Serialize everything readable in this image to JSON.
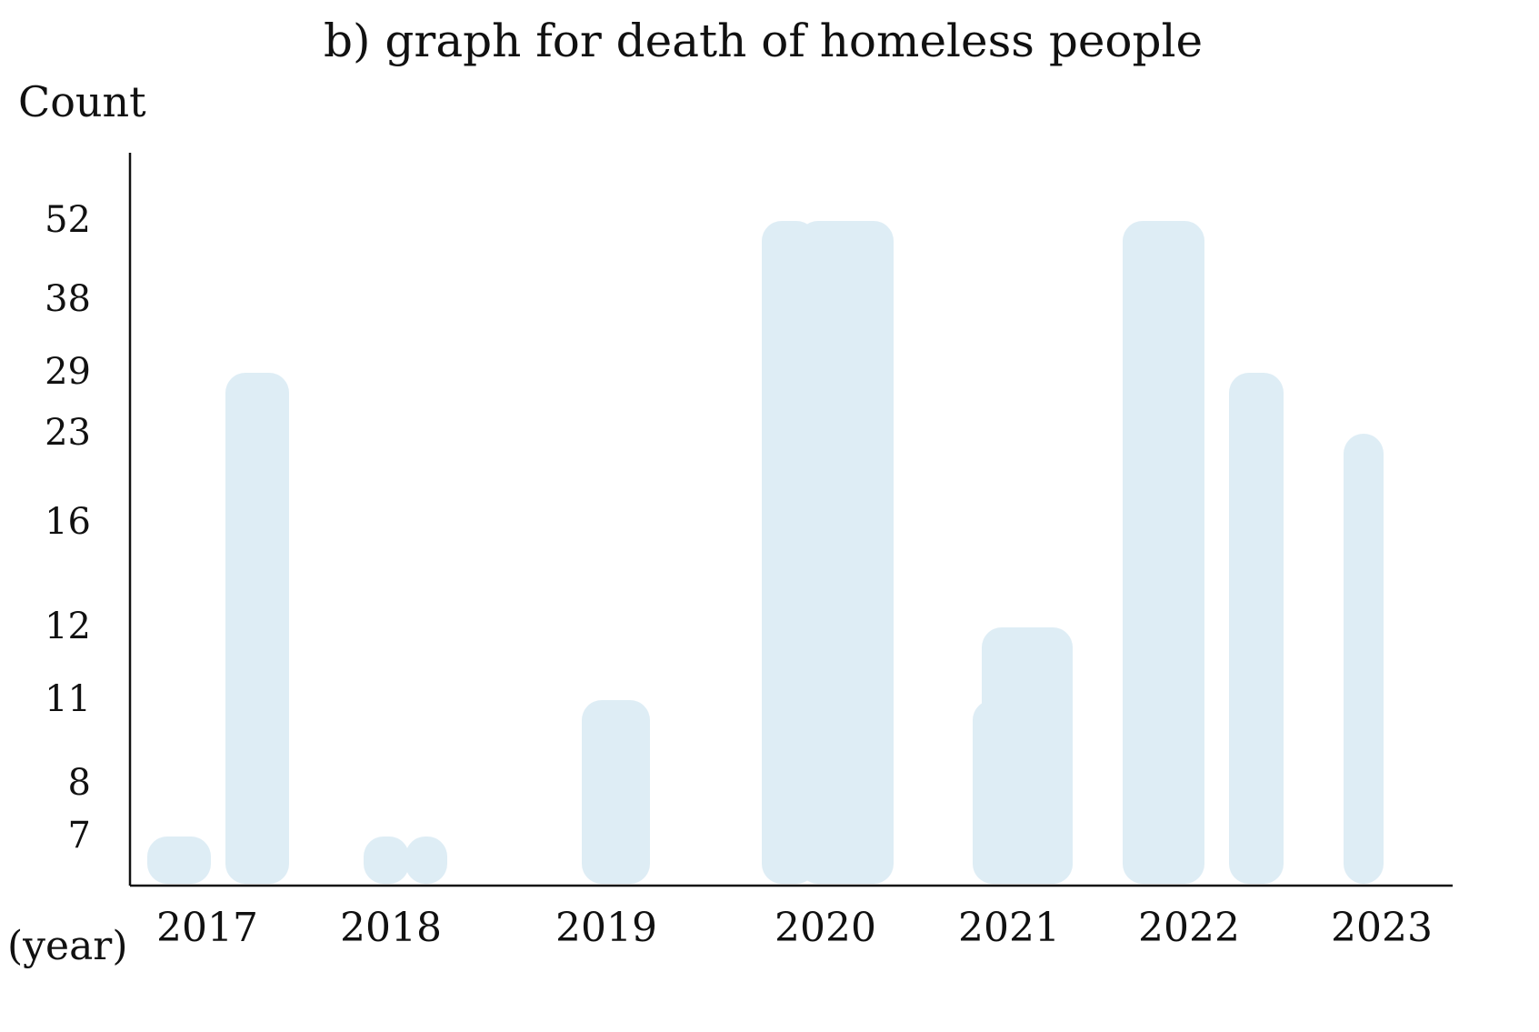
{
  "chart_data": {
    "type": "bar",
    "title": "b) graph for death of homeless people",
    "ylabel": "Count",
    "xlabel": "(year)",
    "y_ticks": [
      "52",
      "38",
      "29",
      "23",
      "16",
      "12",
      "11",
      "8",
      "7"
    ],
    "categories": [
      "2017",
      "2018",
      "2019",
      "2020",
      "2021",
      "2022",
      "2023"
    ],
    "bars": [
      {
        "category": "2017",
        "value": 7
      },
      {
        "category": "2017",
        "value": 29
      },
      {
        "category": "2018",
        "value": 7
      },
      {
        "category": "2018",
        "value": 7
      },
      {
        "category": "2019",
        "value": 11
      },
      {
        "category": "2020",
        "value": 52
      },
      {
        "category": "2020",
        "value": 52
      },
      {
        "category": "2021",
        "value": 11
      },
      {
        "category": "2021",
        "value": 12
      },
      {
        "category": "2022",
        "value": 52
      },
      {
        "category": "2022",
        "value": 29
      },
      {
        "category": "2023",
        "value": 23
      }
    ],
    "grid": false,
    "legend": "none",
    "colors": {
      "bar": "#deedf5",
      "ink": "#111111"
    }
  }
}
